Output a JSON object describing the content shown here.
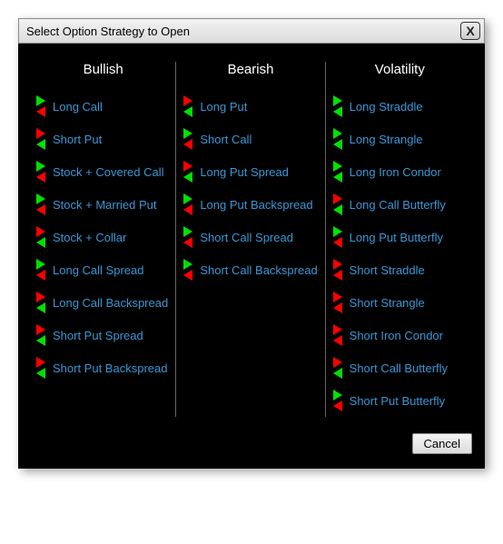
{
  "window": {
    "title": "Select Option Strategy to Open",
    "close_glyph": "X",
    "cancel_label": "Cancel"
  },
  "colors": {
    "bg": "#000000",
    "link": "#3a97d4",
    "header": "#ffffff",
    "divider": "#666666",
    "green": "#00e000",
    "red": "#ff0000"
  },
  "columns": [
    {
      "header": "Bullish",
      "items": [
        {
          "label": "Long Call",
          "icon": [
            "G",
            "R"
          ]
        },
        {
          "label": "Short Put",
          "icon": [
            "R",
            "G"
          ]
        },
        {
          "label": "Stock + Covered Call",
          "icon": [
            "G",
            "R"
          ]
        },
        {
          "label": "Stock + Married Put",
          "icon": [
            "G",
            "R"
          ]
        },
        {
          "label": "Stock + Collar",
          "icon": [
            "R",
            "G"
          ]
        },
        {
          "label": "Long Call Spread",
          "icon": [
            "G",
            "R"
          ]
        },
        {
          "label": "Long Call Backspread",
          "icon": [
            "R",
            "G"
          ]
        },
        {
          "label": "Short Put Spread",
          "icon": [
            "R",
            "G"
          ]
        },
        {
          "label": "Short Put Backspread",
          "icon": [
            "R",
            "G"
          ]
        }
      ]
    },
    {
      "header": "Bearish",
      "items": [
        {
          "label": "Long Put",
          "icon": [
            "R",
            "G"
          ]
        },
        {
          "label": "Short Call",
          "icon": [
            "G",
            "R"
          ]
        },
        {
          "label": "Long Put Spread",
          "icon": [
            "R",
            "G"
          ]
        },
        {
          "label": "Long Put Backspread",
          "icon": [
            "G",
            "R"
          ]
        },
        {
          "label": "Short Call Spread",
          "icon": [
            "G",
            "R"
          ]
        },
        {
          "label": "Short Call Backspread",
          "icon": [
            "G",
            "R"
          ]
        }
      ]
    },
    {
      "header": "Volatility",
      "items": [
        {
          "label": "Long Straddle",
          "icon": [
            "G",
            "G"
          ]
        },
        {
          "label": "Long Strangle",
          "icon": [
            "G",
            "G"
          ]
        },
        {
          "label": "Long Iron Condor",
          "icon": [
            "G",
            "G"
          ]
        },
        {
          "label": "Long Call Butterfly",
          "icon": [
            "R",
            "G"
          ]
        },
        {
          "label": "Long Put Butterfly",
          "icon": [
            "G",
            "R"
          ]
        },
        {
          "label": "Short Straddle",
          "icon": [
            "R",
            "R"
          ]
        },
        {
          "label": "Short Strangle",
          "icon": [
            "R",
            "R"
          ]
        },
        {
          "label": "Short Iron Condor",
          "icon": [
            "R",
            "R"
          ]
        },
        {
          "label": "Short Call Butterfly",
          "icon": [
            "R",
            "G"
          ]
        },
        {
          "label": "Short Put Butterfly",
          "icon": [
            "G",
            "R"
          ]
        }
      ]
    }
  ]
}
